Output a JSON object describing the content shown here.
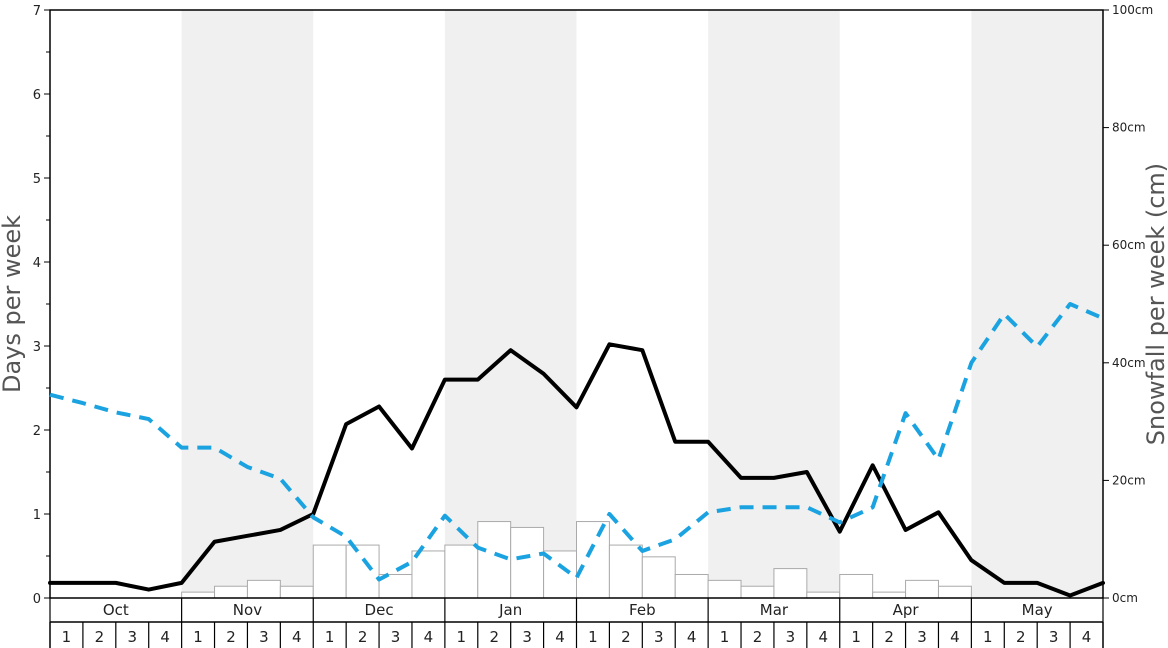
{
  "chart_data": {
    "type": "bar+line",
    "title": "",
    "ylabel_left": "Days per week",
    "ylabel_right": "Snowfall per week (cm)",
    "ylim_left": [
      0,
      7
    ],
    "ylim_right": [
      0,
      100
    ],
    "yticks_left": [
      "0",
      "1",
      "2",
      "3",
      "4",
      "5",
      "6",
      "7"
    ],
    "yticks_right": [
      "0cm",
      "20cm",
      "40cm",
      "60cm",
      "80cm",
      "100cm"
    ],
    "months": [
      "Oct",
      "Nov",
      "Dec",
      "Jan",
      "Feb",
      "Mar",
      "Apr",
      "May"
    ],
    "weeks": [
      "1",
      "2",
      "3",
      "4"
    ],
    "colors": {
      "shade": "#f0f0f0",
      "bar_fill": "#ffffff",
      "bar_stroke": "#aaaaaa",
      "black_line": "#000000",
      "blue_dashed": "#1aa3e0"
    },
    "series": [
      {
        "style": "bar",
        "axis": "right",
        "values": [
          0,
          0,
          0,
          0,
          1,
          2,
          3,
          2,
          9,
          9,
          4,
          8,
          9,
          13,
          12,
          8,
          13,
          9,
          7,
          4,
          3,
          2,
          5,
          1,
          4,
          1,
          3,
          2,
          0,
          0,
          0,
          0
        ]
      },
      {
        "style": "line",
        "axis": "left",
        "values": [
          0.18,
          0.18,
          0.18,
          0.1,
          0.18,
          0.67,
          0.74,
          0.81,
          1.0,
          2.07,
          2.28,
          1.78,
          2.6,
          2.6,
          2.95,
          2.67,
          2.27,
          3.02,
          2.95,
          1.86,
          1.86,
          1.43,
          1.43,
          1.5,
          0.79,
          1.58,
          0.81,
          1.02,
          0.45,
          0.18,
          0.18,
          0.03,
          0.18
        ]
      },
      {
        "style": "dashed-line",
        "axis": "left",
        "values": [
          2.42,
          2.32,
          2.21,
          2.13,
          1.79,
          1.79,
          1.56,
          1.42,
          0.96,
          0.73,
          0.22,
          0.43,
          0.98,
          0.6,
          0.46,
          0.53,
          0.24,
          1.0,
          0.56,
          0.7,
          1.02,
          1.08,
          1.08,
          1.08,
          0.9,
          1.08,
          2.2,
          1.65,
          2.8,
          3.38,
          2.99,
          3.5,
          3.33
        ]
      }
    ]
  }
}
